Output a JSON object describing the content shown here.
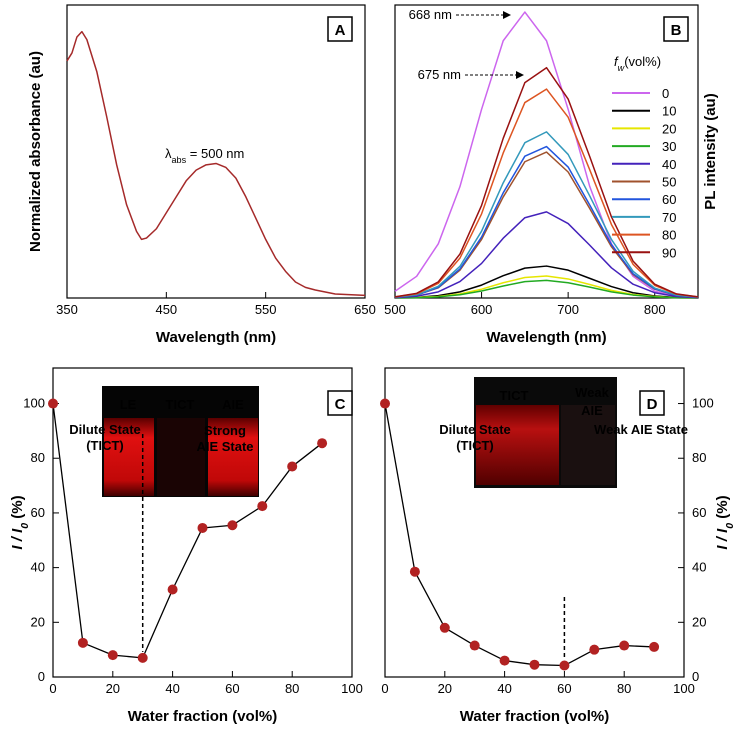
{
  "chart_data": [
    {
      "type": "line",
      "panel_label": "A",
      "xlabel": "Wavelength (nm)",
      "ylabel": "Normalized absorbance (au)",
      "xlim": [
        350,
        650
      ],
      "xticks": [
        350,
        450,
        550,
        650
      ],
      "ylim": [
        0,
        1.1
      ],
      "annotations": [
        {
          "parts": [
            "λ",
            "abs",
            " = 500 nm"
          ]
        }
      ],
      "series": [
        {
          "color": "#a52a2a",
          "x": [
            350,
            355,
            360,
            365,
            370,
            380,
            390,
            400,
            410,
            420,
            425,
            430,
            440,
            450,
            460,
            470,
            480,
            490,
            500,
            510,
            520,
            530,
            540,
            550,
            560,
            570,
            580,
            590,
            600,
            620,
            650
          ],
          "values": [
            0.89,
            0.92,
            0.98,
            1.0,
            0.97,
            0.85,
            0.68,
            0.5,
            0.35,
            0.25,
            0.22,
            0.225,
            0.26,
            0.32,
            0.38,
            0.44,
            0.48,
            0.5,
            0.505,
            0.49,
            0.45,
            0.38,
            0.3,
            0.22,
            0.15,
            0.1,
            0.06,
            0.04,
            0.03,
            0.015,
            0.01
          ]
        }
      ]
    },
    {
      "type": "line",
      "panel_label": "B",
      "xlabel": "Wavelength (nm)",
      "ylabel": "PL intensity (au)",
      "ylabel_side": "right",
      "xlim": [
        500,
        850
      ],
      "xticks": [
        500,
        600,
        700,
        800
      ],
      "ylim": [
        0,
        100
      ],
      "legend_title": [
        "f",
        "w",
        "(vol%)"
      ],
      "annotations": [
        {
          "lines": [
            "668 nm"
          ]
        },
        {
          "lines": [
            "675 nm"
          ]
        }
      ],
      "series": [
        {
          "name": "0",
          "color": "#cc66ee",
          "x": [
            500,
            525,
            550,
            575,
            600,
            625,
            650,
            675,
            700,
            725,
            750,
            775,
            800,
            825,
            850
          ],
          "values": [
            2.3,
            7.4,
            18.5,
            38,
            64.4,
            87.8,
            97.6,
            87.8,
            64.4,
            38,
            18.5,
            7.4,
            2.3,
            0.6,
            0.1
          ]
        },
        {
          "name": "10",
          "color": "#000000",
          "x": [
            500,
            525,
            550,
            575,
            600,
            625,
            650,
            675,
            700,
            725,
            750,
            775,
            800,
            825,
            850
          ],
          "values": [
            0.1,
            0.2,
            0.8,
            2.1,
            4.4,
            7.6,
            10.2,
            10.9,
            9.5,
            6.7,
            3.9,
            1.8,
            0.7,
            0.2,
            0.1
          ]
        },
        {
          "name": "20",
          "color": "#e6e600",
          "x": [
            500,
            525,
            550,
            575,
            600,
            625,
            650,
            675,
            700,
            725,
            750,
            775,
            800,
            825,
            850
          ],
          "values": [
            0,
            0.2,
            0.5,
            1.4,
            3,
            5.2,
            7,
            7.5,
            6.5,
            4.6,
            2.6,
            1.2,
            0.5,
            0.1,
            0
          ]
        },
        {
          "name": "30",
          "color": "#22aa22",
          "x": [
            500,
            525,
            550,
            575,
            600,
            625,
            650,
            675,
            700,
            725,
            750,
            775,
            800,
            825,
            850
          ],
          "values": [
            0,
            0.1,
            0.4,
            1.1,
            2.4,
            4.1,
            5.6,
            6,
            5.2,
            3.7,
            2.1,
            1,
            0.4,
            0.1,
            0
          ]
        },
        {
          "name": "40",
          "color": "#4422bb",
          "x": [
            500,
            525,
            550,
            575,
            600,
            625,
            650,
            675,
            700,
            725,
            750,
            775,
            800,
            825,
            850
          ],
          "values": [
            0.1,
            0.6,
            2.1,
            5.6,
            11.8,
            20.4,
            27.4,
            29.4,
            25.4,
            18,
            10.3,
            4.7,
            1.8,
            0.5,
            0.1
          ]
        },
        {
          "name": "50",
          "color": "#a0522d",
          "x": [
            500,
            525,
            550,
            575,
            600,
            625,
            650,
            675,
            700,
            725,
            750,
            775,
            800,
            825,
            850
          ],
          "values": [
            0.3,
            1,
            3.5,
            9.5,
            20,
            34.5,
            46.5,
            49.8,
            43,
            30.5,
            17.5,
            8,
            3,
            0.9,
            0.3
          ]
        },
        {
          "name": "60",
          "color": "#2255dd",
          "x": [
            500,
            525,
            550,
            575,
            600,
            625,
            650,
            675,
            700,
            725,
            750,
            775,
            800,
            825,
            850
          ],
          "values": [
            0.3,
            1,
            3.6,
            9.9,
            20.8,
            35.9,
            48.4,
            51.7,
            44.7,
            31.7,
            18.2,
            8.3,
            3.1,
            0.9,
            0.3
          ]
        },
        {
          "name": "70",
          "color": "#3399bb",
          "x": [
            500,
            525,
            550,
            575,
            600,
            625,
            650,
            675,
            700,
            725,
            750,
            775,
            800,
            825,
            850
          ],
          "values": [
            0.3,
            1.1,
            4,
            10.8,
            22.8,
            39.3,
            53,
            56.7,
            49,
            34.8,
            20,
            9.1,
            3.4,
            1,
            0.3
          ]
        },
        {
          "name": "80",
          "color": "#dd5522",
          "x": [
            500,
            525,
            550,
            575,
            600,
            625,
            650,
            675,
            700,
            725,
            750,
            775,
            800,
            825,
            850
          ],
          "values": [
            0.4,
            1.4,
            5,
            13.6,
            28.7,
            49.5,
            66.7,
            71.3,
            61.7,
            43.7,
            25.1,
            11.5,
            4.3,
            1.3,
            0.4
          ]
        },
        {
          "name": "90",
          "color": "#991111",
          "x": [
            500,
            525,
            550,
            575,
            600,
            625,
            650,
            675,
            700,
            725,
            750,
            775,
            800,
            825,
            850
          ],
          "values": [
            0.4,
            1.6,
            5.5,
            15,
            31.6,
            54.5,
            73.5,
            78.6,
            67.9,
            48.2,
            27.7,
            12.6,
            4.7,
            1.4,
            0.4
          ]
        }
      ]
    },
    {
      "type": "line",
      "markers": true,
      "panel_label": "C",
      "xlabel": "Water fraction (vol%)",
      "ylabel": [
        "I / I",
        "0",
        " (%)"
      ],
      "xlim": [
        0,
        100
      ],
      "xticks": [
        0,
        20,
        40,
        60,
        80,
        100
      ],
      "ylim": [
        0,
        113
      ],
      "yticks": [
        0,
        20,
        40,
        60,
        80,
        100
      ],
      "divider_x": 30,
      "inset_labels": [
        [
          "LE"
        ],
        [
          "TICT"
        ],
        [
          "AIE"
        ]
      ],
      "annotations": [
        {
          "lines": [
            "Dilute State",
            "(TICT)"
          ],
          "color": "#3a8fb7"
        },
        {
          "lines": [
            "Strong",
            "AIE State"
          ],
          "color": "#a01818"
        }
      ],
      "series": [
        {
          "color": "#000000",
          "marker_color": "#b22222",
          "x": [
            0,
            10,
            20,
            30,
            40,
            50,
            60,
            70,
            80,
            90
          ],
          "values": [
            100,
            12.5,
            8,
            7,
            32,
            54.5,
            55.5,
            62.5,
            77,
            85.5
          ]
        }
      ]
    },
    {
      "type": "line",
      "markers": true,
      "panel_label": "D",
      "xlabel": "Water fraction (vol%)",
      "ylabel": [
        "I / I",
        "0",
        " (%)"
      ],
      "ylabel_side": "right",
      "yaxis_side": "right",
      "xlim": [
        0,
        100
      ],
      "xticks": [
        0,
        20,
        40,
        60,
        80,
        100
      ],
      "ylim": [
        0,
        113
      ],
      "yticks": [
        0,
        20,
        40,
        60,
        80,
        100
      ],
      "divider_x": 60,
      "inset_labels": [
        [
          "TICT"
        ],
        [
          "Weak",
          "AIE"
        ]
      ],
      "annotations": [
        {
          "lines": [
            "Dilute State",
            "(TICT)"
          ],
          "color": "#3a8fb7"
        },
        {
          "lines": [
            "Weak AIE State"
          ],
          "color": "#a01818"
        }
      ],
      "series": [
        {
          "color": "#000000",
          "marker_color": "#b22222",
          "x": [
            0,
            10,
            20,
            30,
            40,
            50,
            60,
            70,
            80,
            90
          ],
          "values": [
            100,
            38.5,
            18,
            11.5,
            6,
            4.5,
            4.2,
            10,
            11.5,
            11
          ]
        }
      ]
    }
  ]
}
